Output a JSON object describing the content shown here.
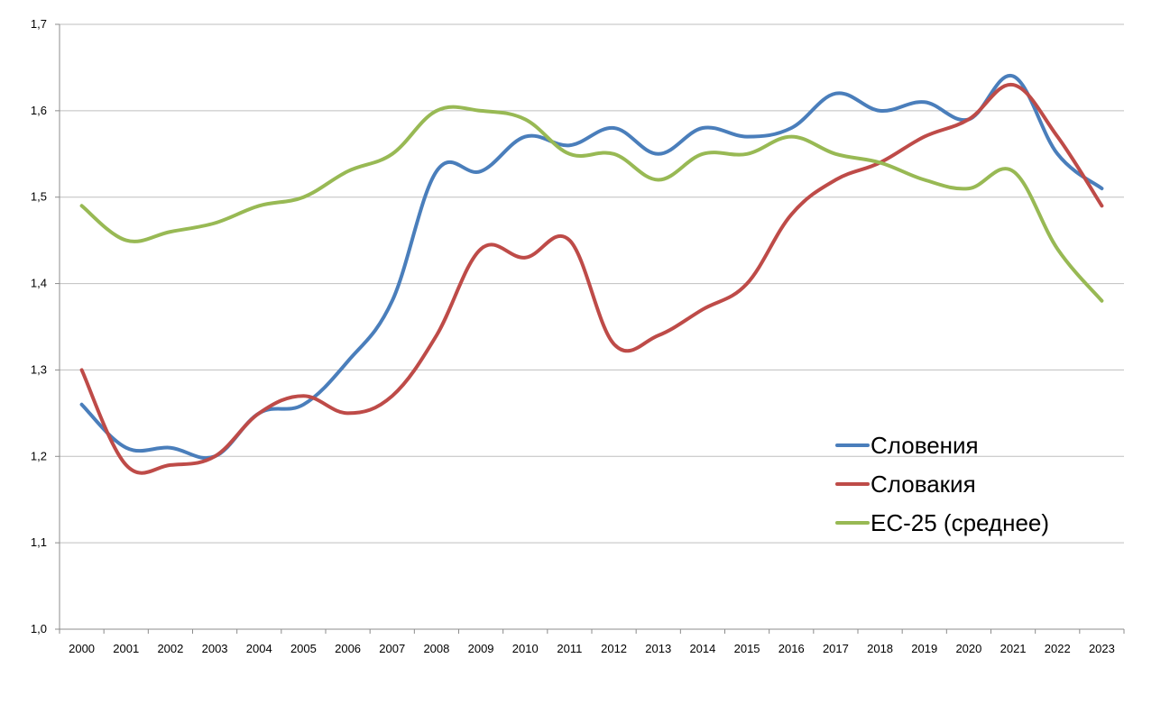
{
  "chart_data": {
    "type": "line",
    "title": "",
    "xlabel": "",
    "ylabel": "",
    "ylim": [
      1.0,
      1.7
    ],
    "grid": true,
    "legend_position": "right-bottom",
    "y_ticks": [
      "1,0",
      "1,1",
      "1,2",
      "1,3",
      "1,4",
      "1,5",
      "1,6",
      "1,7"
    ],
    "categories": [
      "2000",
      "2001",
      "2002",
      "2003",
      "2004",
      "2005",
      "2006",
      "2007",
      "2008",
      "2009",
      "2010",
      "2011",
      "2012",
      "2013",
      "2014",
      "2015",
      "2016",
      "2017",
      "2018",
      "2019",
      "2020",
      "2021",
      "2022",
      "2023"
    ],
    "series": [
      {
        "name": "Словения",
        "color": "#4a7ebb",
        "values": [
          1.26,
          1.21,
          1.21,
          1.2,
          1.25,
          1.26,
          1.31,
          1.38,
          1.53,
          1.53,
          1.57,
          1.56,
          1.58,
          1.55,
          1.58,
          1.57,
          1.58,
          1.62,
          1.6,
          1.61,
          1.59,
          1.64,
          1.55,
          1.51
        ]
      },
      {
        "name": "Словакия",
        "color": "#be4b48",
        "values": [
          1.3,
          1.19,
          1.19,
          1.2,
          1.25,
          1.27,
          1.25,
          1.27,
          1.34,
          1.44,
          1.43,
          1.45,
          1.33,
          1.34,
          1.37,
          1.4,
          1.48,
          1.52,
          1.54,
          1.57,
          1.59,
          1.63,
          1.57,
          1.49
        ]
      },
      {
        "name": "ЕС-25 (среднее)",
        "color": "#98b954",
        "values": [
          1.49,
          1.45,
          1.46,
          1.47,
          1.49,
          1.5,
          1.53,
          1.55,
          1.6,
          1.6,
          1.59,
          1.55,
          1.55,
          1.52,
          1.55,
          1.55,
          1.57,
          1.55,
          1.54,
          1.52,
          1.51,
          1.53,
          1.44,
          1.38
        ]
      }
    ]
  }
}
